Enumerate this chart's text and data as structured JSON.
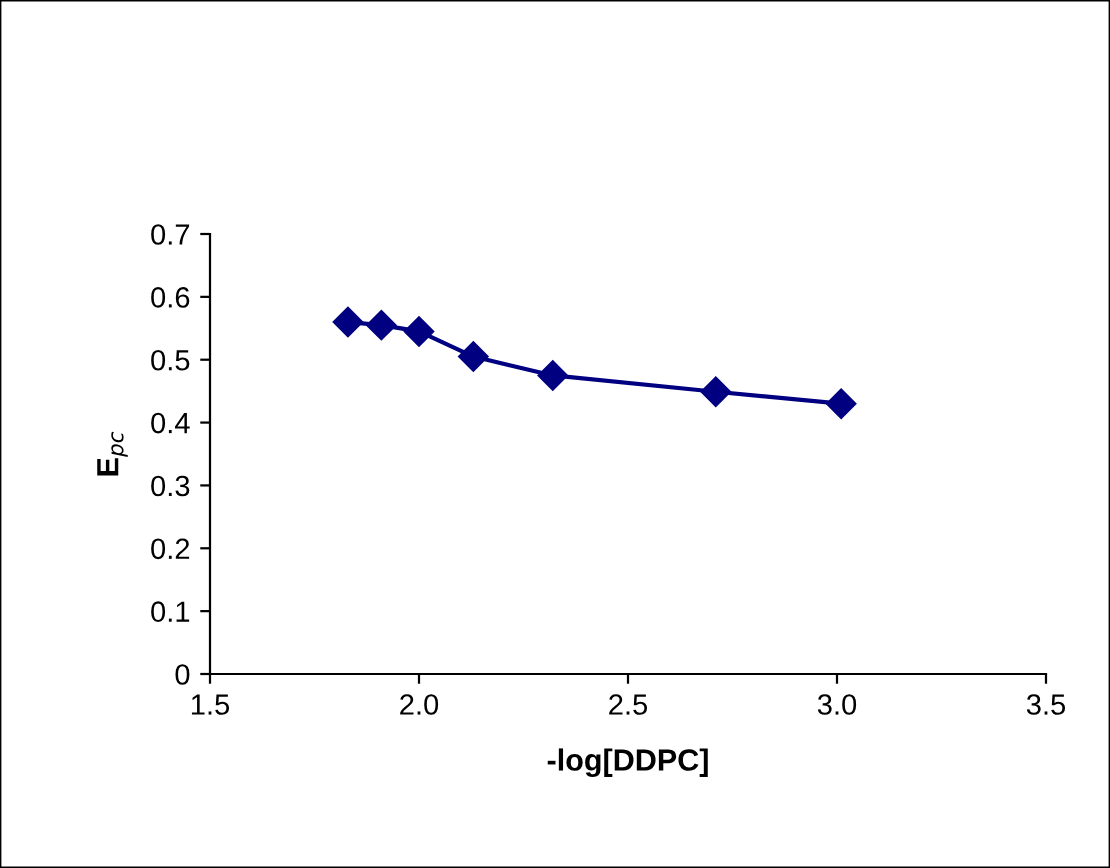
{
  "chart_data": {
    "type": "line",
    "xlabel": "-log[DDPC]",
    "ylabel": "E$_{pc}$",
    "x": [
      1.83,
      1.91,
      2.0,
      2.13,
      2.32,
      2.71,
      3.01
    ],
    "series": [
      {
        "color": "#000080",
        "values": [
          0.56,
          0.555,
          0.545,
          0.505,
          0.475,
          0.449,
          0.43
        ]
      }
    ],
    "marker": "diamond",
    "line_style": "solid",
    "xlim": [
      1.5,
      3.5
    ],
    "xticks": [
      {
        "value": 1.5,
        "label": "1.5"
      },
      {
        "value": 2.0,
        "label": "2.0"
      },
      {
        "value": 2.5,
        "label": "2.5"
      },
      {
        "value": 3.0,
        "label": "3.0"
      },
      {
        "value": 3.5,
        "label": "3.5"
      }
    ],
    "ylim": [
      0,
      0.7
    ],
    "yticks": [
      {
        "value": 0,
        "label": "0"
      },
      {
        "value": 0.1,
        "label": "0.1"
      },
      {
        "value": 0.2,
        "label": "0.2"
      },
      {
        "value": 0.3,
        "label": "0.3"
      },
      {
        "value": 0.4,
        "label": "0.4"
      },
      {
        "value": 0.5,
        "label": "0.5"
      },
      {
        "value": 0.6,
        "label": "0.6"
      },
      {
        "value": 0.7,
        "label": "0.7"
      }
    ],
    "grid": false,
    "legend": false
  }
}
